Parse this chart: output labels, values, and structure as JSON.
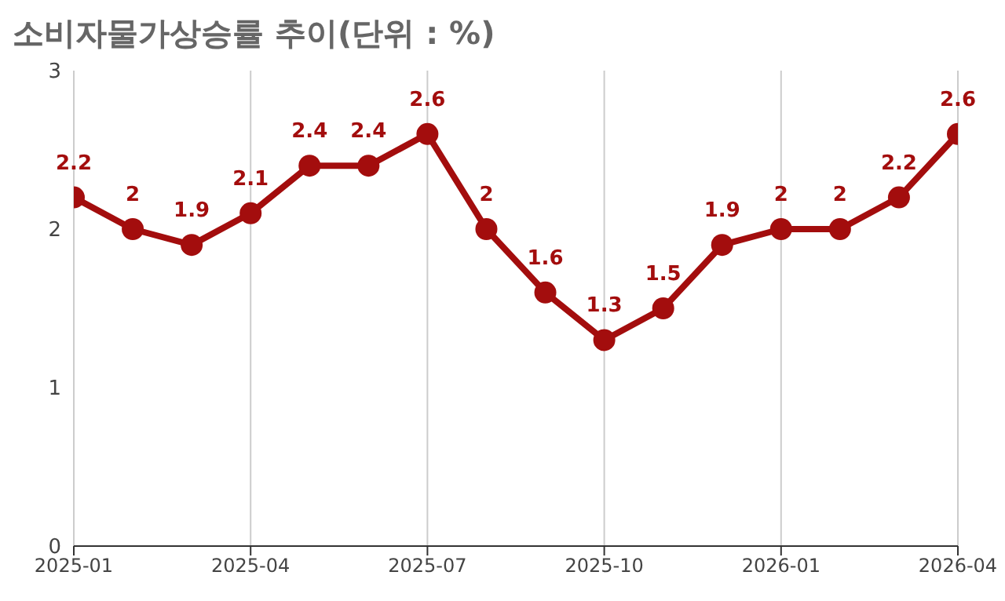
{
  "chart_data": {
    "type": "line",
    "title": "소비자물가상승률 추이(단위 : %)",
    "x": [
      "2025-01",
      "2025-02",
      "2025-03",
      "2025-04",
      "2025-05",
      "2025-06",
      "2025-07",
      "2025-08",
      "2025-09",
      "2025-10",
      "2025-11",
      "2025-12",
      "2026-01",
      "2026-02",
      "2026-03",
      "2026-04"
    ],
    "series": [
      {
        "color": "#a30d0d",
        "values": [
          2.2,
          2,
          1.9,
          2.1,
          2.4,
          2.4,
          2.6,
          2,
          1.6,
          1.3,
          1.5,
          1.9,
          2,
          2,
          2.2,
          2.6
        ]
      }
    ],
    "xlim": [
      "2025-01",
      "2026-04"
    ],
    "xticks": [
      "2025-01",
      "2025-04",
      "2025-07",
      "2025-10",
      "2026-01",
      "2026-04"
    ],
    "ylim": [
      0,
      3
    ],
    "yticks": [
      0,
      1,
      2,
      3
    ],
    "grid": "x",
    "marker": "circle",
    "line_style": "solid",
    "data_labels": true
  }
}
